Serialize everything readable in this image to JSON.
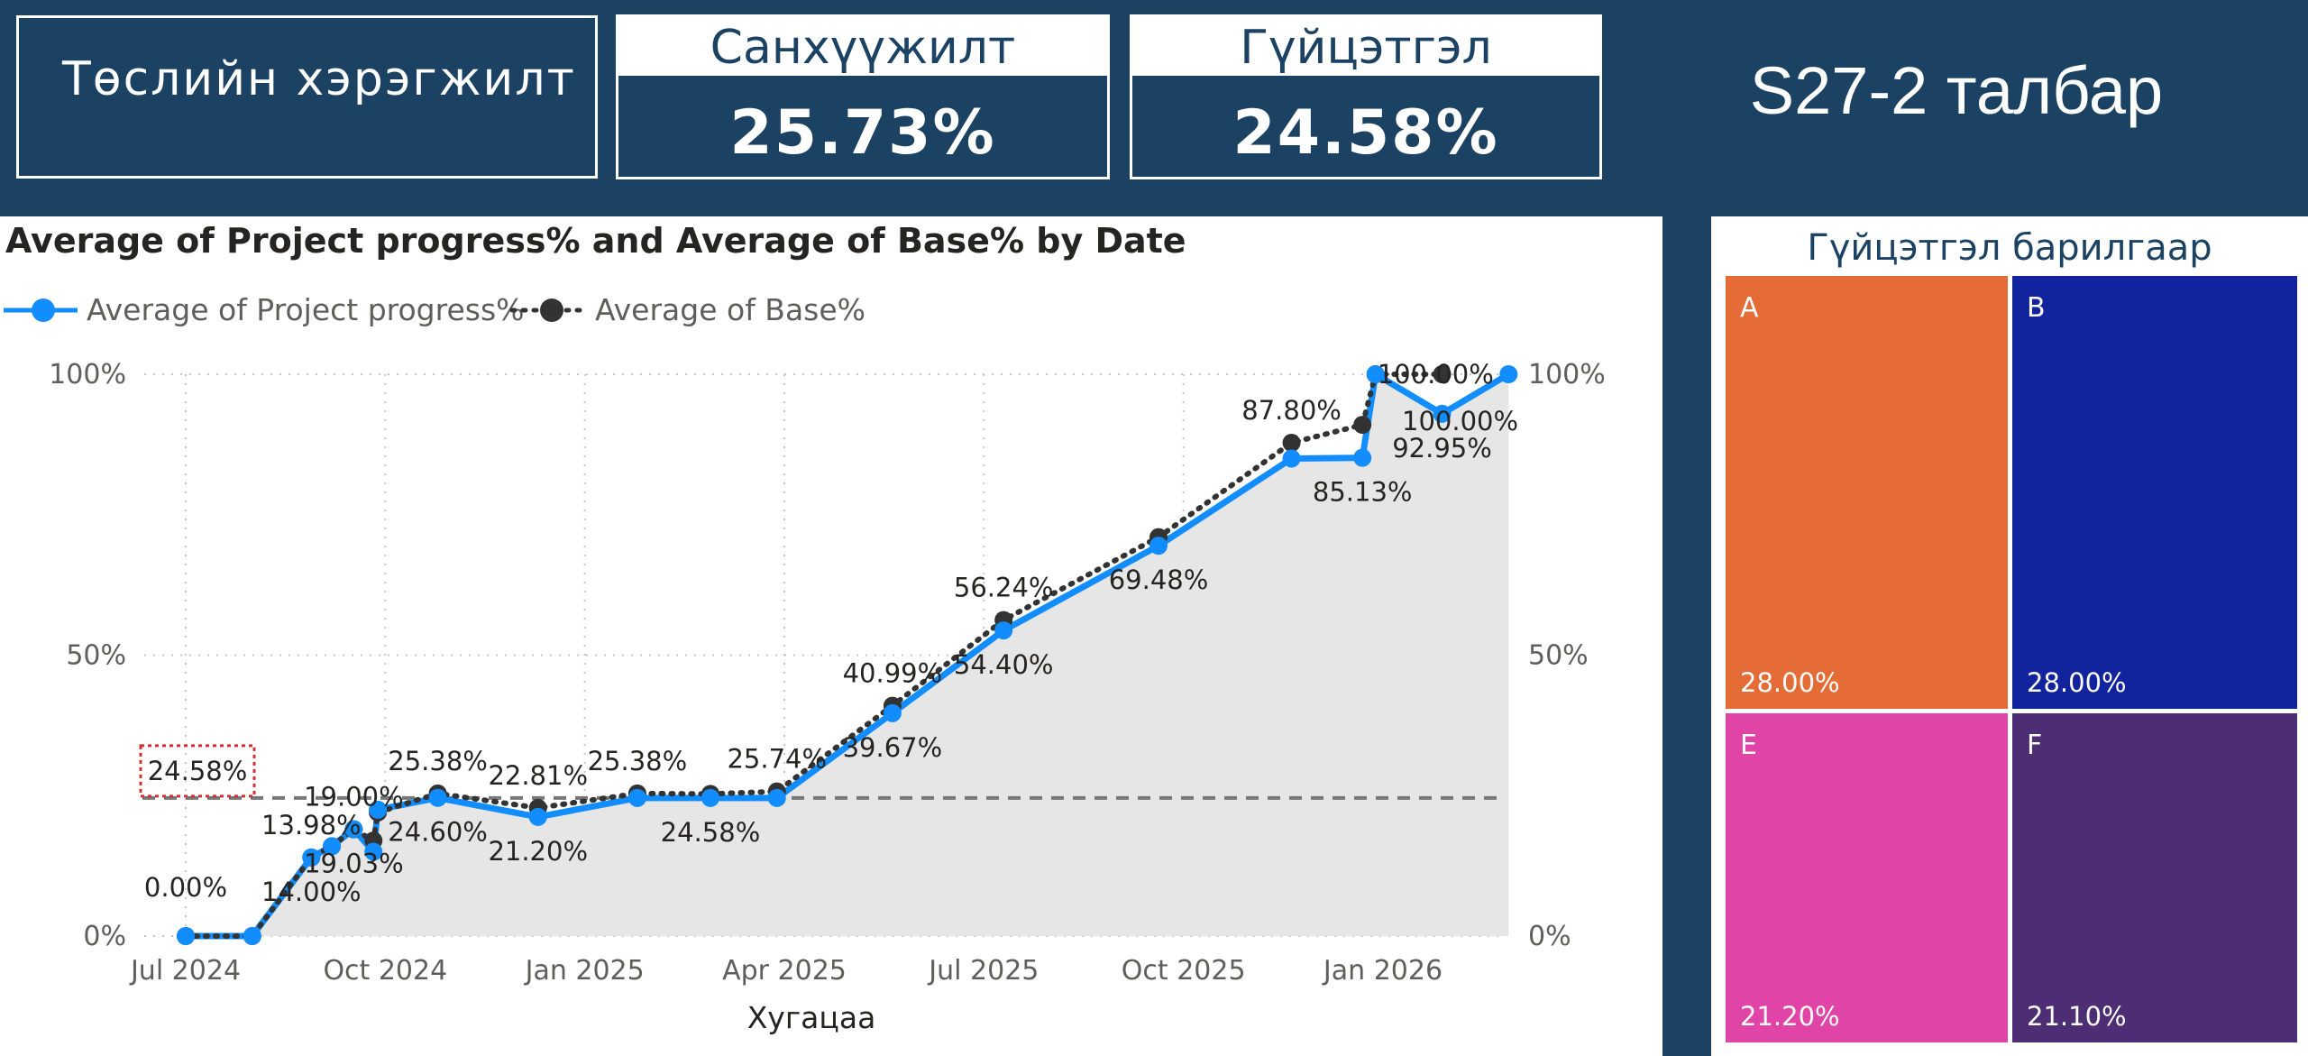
{
  "header": {
    "project_title": "Төслийн хэрэгжилт",
    "finance": {
      "label": "Санхүүжилт",
      "value": "25.73%"
    },
    "performance": {
      "label": "Гүйцэтгэл",
      "value": "24.58%"
    },
    "field_name": "S27-2 талбар"
  },
  "colors": {
    "header_bg": "#1b4263",
    "progress_line": "#118dff",
    "base_line": "#333333",
    "area_fill": "#e6e6e6",
    "tile_a": "#e66c37",
    "tile_b": "#12239e",
    "tile_e": "#e044a7",
    "tile_f": "#4d2d73"
  },
  "chart_data": {
    "type": "line",
    "title": "Average of Project progress% and Average of Base% by Date",
    "xlabel": "Хугацаа",
    "ylabel": "",
    "ylim": [
      0,
      100
    ],
    "y_ticks": [
      "0%",
      "50%",
      "100%"
    ],
    "x_ticks": [
      "Jul 2024",
      "Oct 2024",
      "Jan 2025",
      "Apr 2025",
      "Jul 2025",
      "Oct 2025",
      "Jan 2026"
    ],
    "legend_position": "top-left",
    "grid": true,
    "reference_line": {
      "value": 24.58,
      "label": "24.58%"
    },
    "series": [
      {
        "name": "Average of Project progress%",
        "style": "solid",
        "points": [
          {
            "date": "2024-07-01",
            "value": 0.0,
            "label": "0.00%"
          },
          {
            "date": "2024-08-01",
            "value": 0.0,
            "label": ""
          },
          {
            "date": "2024-08-28",
            "value": 14.0,
            "label": "14.00%"
          },
          {
            "date": "2024-09-07",
            "value": 16.0,
            "label": ""
          },
          {
            "date": "2024-09-17",
            "value": 19.03,
            "label": "19.03%"
          },
          {
            "date": "2024-09-26",
            "value": 15.0,
            "label": ""
          },
          {
            "date": "2024-09-28",
            "value": 22.5,
            "label": ""
          },
          {
            "date": "2024-10-25",
            "value": 24.6,
            "label": "24.60%"
          },
          {
            "date": "2024-12-10",
            "value": 21.2,
            "label": "21.20%"
          },
          {
            "date": "2025-01-25",
            "value": 24.58,
            "label": ""
          },
          {
            "date": "2025-02-28",
            "value": 24.58,
            "label": "24.58%"
          },
          {
            "date": "2025-03-28",
            "value": 24.58,
            "label": ""
          },
          {
            "date": "2025-05-20",
            "value": 39.67,
            "label": "39.67%"
          },
          {
            "date": "2025-07-10",
            "value": 54.4,
            "label": "54.40%"
          },
          {
            "date": "2025-09-20",
            "value": 69.48,
            "label": "69.48%"
          },
          {
            "date": "2025-11-20",
            "value": 85.0,
            "label": ""
          },
          {
            "date": "2025-12-22",
            "value": 85.13,
            "label": "85.13%"
          },
          {
            "date": "2025-12-28",
            "value": 100.0,
            "label": ""
          },
          {
            "date": "2026-01-28",
            "value": 92.95,
            "label": "92.95%"
          },
          {
            "date": "2026-02-28",
            "value": 100.0,
            "label": ""
          }
        ]
      },
      {
        "name": "Average of Base%",
        "style": "dotted",
        "points": [
          {
            "date": "2024-07-01",
            "value": 0.0,
            "label": ""
          },
          {
            "date": "2024-08-01",
            "value": 0.0,
            "label": ""
          },
          {
            "date": "2024-08-28",
            "value": 13.98,
            "label": "13.98%"
          },
          {
            "date": "2024-09-07",
            "value": 16.0,
            "label": ""
          },
          {
            "date": "2024-09-17",
            "value": 19.0,
            "label": "19.00%"
          },
          {
            "date": "2024-09-26",
            "value": 17.0,
            "label": ""
          },
          {
            "date": "2024-09-28",
            "value": 22.0,
            "label": ""
          },
          {
            "date": "2024-10-25",
            "value": 25.38,
            "label": "25.38%"
          },
          {
            "date": "2024-12-10",
            "value": 22.81,
            "label": "22.81%"
          },
          {
            "date": "2025-01-25",
            "value": 25.38,
            "label": "25.38%"
          },
          {
            "date": "2025-02-28",
            "value": 25.3,
            "label": ""
          },
          {
            "date": "2025-03-28",
            "value": 25.74,
            "label": "25.74%"
          },
          {
            "date": "2025-05-20",
            "value": 40.99,
            "label": "40.99%"
          },
          {
            "date": "2025-07-10",
            "value": 56.24,
            "label": "56.24%"
          },
          {
            "date": "2025-09-20",
            "value": 71.0,
            "label": ""
          },
          {
            "date": "2025-11-20",
            "value": 87.8,
            "label": "87.80%"
          },
          {
            "date": "2025-12-22",
            "value": 91.0,
            "label": ""
          },
          {
            "date": "2025-12-28",
            "value": 100.0,
            "label": "100.00%"
          },
          {
            "date": "2026-01-28",
            "value": 100.0,
            "label": "100.00%"
          }
        ]
      }
    ]
  },
  "treemap": {
    "title": "Гүйцэтгэл барилгаар",
    "tiles": [
      {
        "name": "A",
        "value": "28.00%"
      },
      {
        "name": "B",
        "value": "28.00%"
      },
      {
        "name": "E",
        "value": "21.20%"
      },
      {
        "name": "F",
        "value": "21.10%"
      }
    ]
  }
}
